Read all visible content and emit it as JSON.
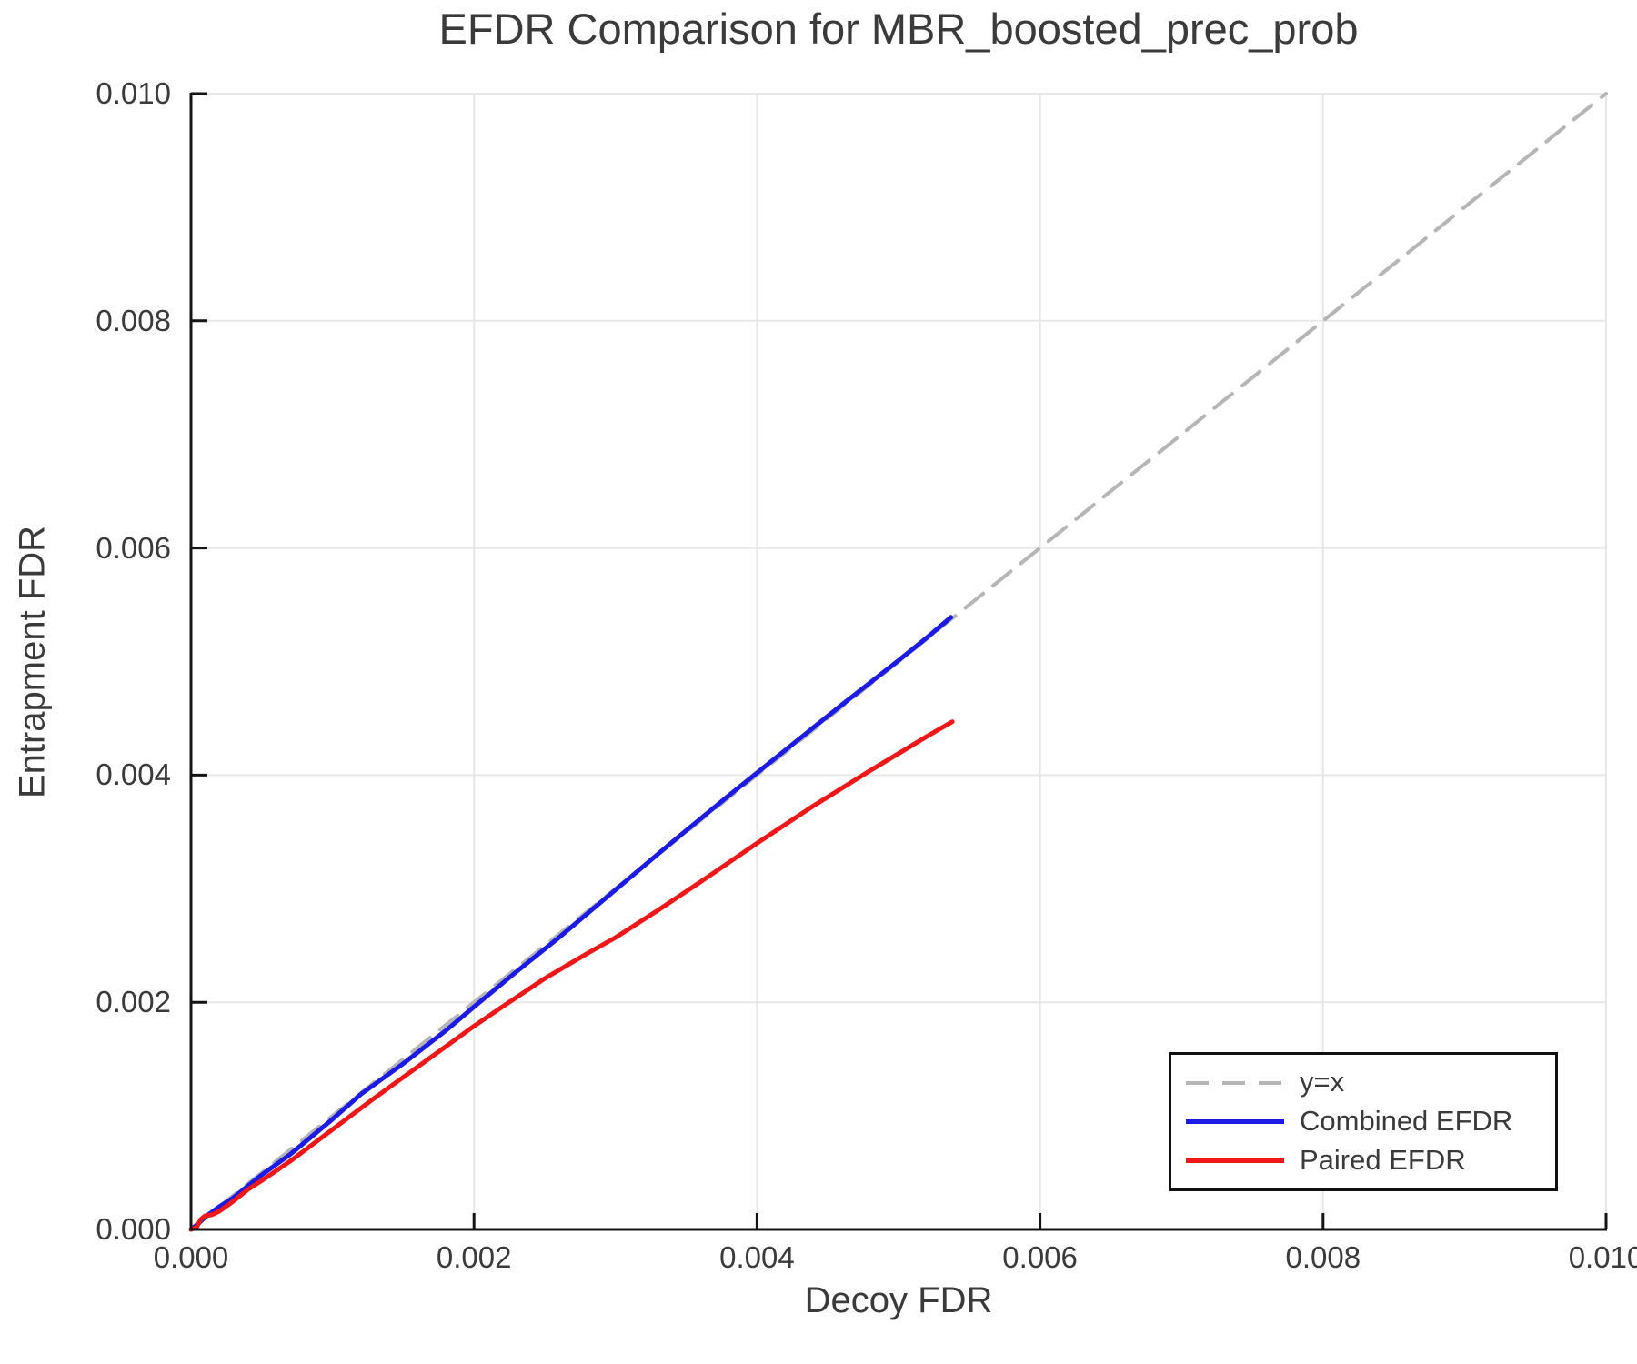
{
  "chart_data": {
    "type": "line",
    "title": "EFDR Comparison for MBR_boosted_prec_prob",
    "xlabel": "Decoy FDR",
    "ylabel": "Entrapment FDR",
    "xlim": [
      0,
      0.01
    ],
    "ylim": [
      0,
      0.01
    ],
    "x_tick_values": [
      0,
      0.002,
      0.004,
      0.006,
      0.008,
      0.01
    ],
    "x_tick_labels": [
      "0.000",
      "0.002",
      "0.004",
      "0.006",
      "0.008",
      "0.010"
    ],
    "y_tick_values": [
      0,
      0.002,
      0.004,
      0.006,
      0.008,
      0.01
    ],
    "y_tick_labels": [
      "0.000",
      "0.002",
      "0.004",
      "0.006",
      "0.008",
      "0.010"
    ],
    "grid": true,
    "grid_color": "#e7e7e7",
    "axis_color": "#141414",
    "text_color": "#3a3a3a",
    "legend_position": "lower-right",
    "series": [
      {
        "name": "y=x",
        "color": "#b5b5b5",
        "style": "dashed",
        "width": 4,
        "points": [
          [
            0,
            0
          ],
          [
            0.01,
            0.01
          ]
        ]
      },
      {
        "name": "Combined EFDR",
        "color": "#1b1be4",
        "style": "solid",
        "width": 5,
        "points": [
          [
            0,
            0
          ],
          [
            5e-05,
            5e-05
          ],
          [
            0.0001,
            0.00011
          ],
          [
            0.0002,
            0.0002
          ],
          [
            0.0003,
            0.00028
          ],
          [
            0.0005,
            0.00048
          ],
          [
            0.0007,
            0.00066
          ],
          [
            0.001,
            0.00097
          ],
          [
            0.0012,
            0.00119
          ],
          [
            0.0015,
            0.00146
          ],
          [
            0.0018,
            0.00175
          ],
          [
            0.002,
            0.00196
          ],
          [
            0.0023,
            0.00227
          ],
          [
            0.0026,
            0.00257
          ],
          [
            0.003,
            0.00299
          ],
          [
            0.0034,
            0.00341
          ],
          [
            0.0038,
            0.00382
          ],
          [
            0.0042,
            0.00422
          ],
          [
            0.0046,
            0.00462
          ],
          [
            0.005,
            0.00501
          ],
          [
            0.0052,
            0.00521
          ],
          [
            0.00537,
            0.00539
          ]
        ]
      },
      {
        "name": "Paired EFDR",
        "color": "#ef1717",
        "style": "solid",
        "width": 5,
        "points": [
          [
            0,
            0
          ],
          [
            4e-05,
            2e-05
          ],
          [
            7e-05,
            9e-05
          ],
          [
            0.0001,
            0.00012
          ],
          [
            0.00015,
            0.00013
          ],
          [
            0.0002,
            0.00016
          ],
          [
            0.0003,
            0.00025
          ],
          [
            0.0004,
            0.00035
          ],
          [
            0.0005,
            0.00043
          ],
          [
            0.0007,
            0.0006
          ],
          [
            0.001,
            0.00088
          ],
          [
            0.0013,
            0.00116
          ],
          [
            0.0015,
            0.00134
          ],
          [
            0.0017,
            0.00152
          ],
          [
            0.002,
            0.00179
          ],
          [
            0.0022,
            0.00196
          ],
          [
            0.0025,
            0.00221
          ],
          [
            0.0028,
            0.00243
          ],
          [
            0.003,
            0.00257
          ],
          [
            0.0033,
            0.00281
          ],
          [
            0.0036,
            0.00306
          ],
          [
            0.004,
            0.0034
          ],
          [
            0.0044,
            0.00373
          ],
          [
            0.0048,
            0.00404
          ],
          [
            0.005,
            0.00419
          ],
          [
            0.0052,
            0.00434
          ],
          [
            0.00538,
            0.00447
          ]
        ]
      }
    ]
  }
}
